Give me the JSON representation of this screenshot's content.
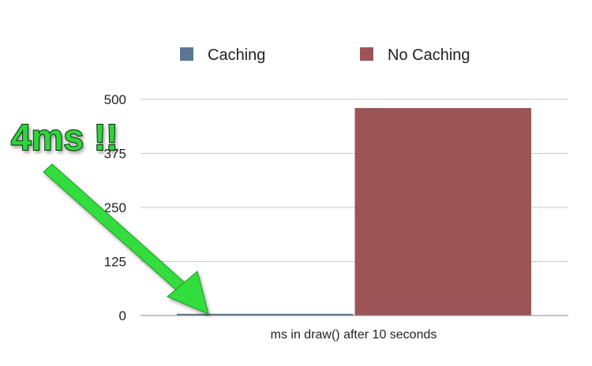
{
  "chart_data": {
    "type": "bar",
    "categories": [
      "ms in draw() after 10 seconds"
    ],
    "series": [
      {
        "name": "Caching",
        "values": [
          4
        ],
        "color": "#5a7690"
      },
      {
        "name": "No Caching",
        "values": [
          480
        ],
        "color": "#9c5457"
      }
    ],
    "title": "",
    "xlabel": "ms in draw() after 10 seconds",
    "ylabel": "",
    "ylim": [
      0,
      500
    ],
    "yticks": [
      0,
      125,
      250,
      375,
      500
    ],
    "grid": true,
    "legend": "top-center",
    "annotation": {
      "text": "4ms !!",
      "color": "#2fd43a",
      "target_series": "Caching"
    }
  }
}
